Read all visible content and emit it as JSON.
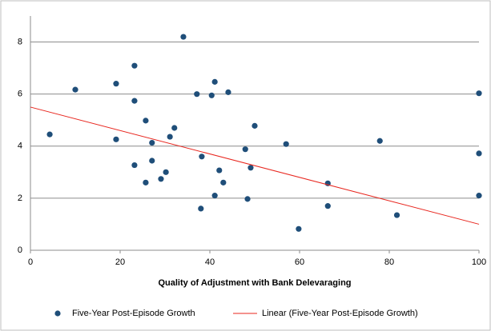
{
  "chart_data": {
    "type": "scatter",
    "x_label": "Quality of Adjustment with Bank Delevaraging",
    "xlim": [
      0,
      100
    ],
    "xticks": [
      0,
      20,
      40,
      60,
      80,
      100
    ],
    "ylim": [
      0,
      9
    ],
    "yticks": [
      0,
      2,
      4,
      6,
      8
    ],
    "grid": true,
    "series": [
      {
        "name": "Five-Year Post-Episode Growth",
        "color": "#1f4e79",
        "x": [
          4.3,
          10,
          19.1,
          19.1,
          23.2,
          23.2,
          23.2,
          25.7,
          25.7,
          27.1,
          27.1,
          29.1,
          30.2,
          31.1,
          32.1,
          34.1,
          37.1,
          38.2,
          38,
          40.4,
          41.1,
          41.1,
          42.1,
          43,
          44.1,
          47.9,
          48.4,
          49.1,
          50,
          57,
          59.8,
          66.3,
          66.3,
          77.9,
          81.7,
          100,
          100,
          100
        ],
        "values": [
          4.45,
          6.17,
          6.4,
          4.26,
          7.09,
          5.74,
          3.27,
          4.98,
          2.6,
          4.13,
          3.44,
          2.74,
          3.0,
          4.36,
          4.7,
          8.2,
          6.0,
          3.6,
          1.6,
          5.95,
          6.47,
          2.1,
          3.07,
          2.6,
          6.07,
          3.88,
          1.97,
          3.17,
          4.78,
          4.08,
          0.82,
          1.7,
          2.57,
          4.2,
          1.35,
          6.03,
          3.72,
          2.1
        ]
      },
      {
        "name": "Linear (Five-Year Post-Episode Growth)",
        "color": "#e8261e",
        "line": true,
        "x": [
          0,
          100
        ],
        "values": [
          5.5,
          1.0
        ]
      }
    ]
  }
}
